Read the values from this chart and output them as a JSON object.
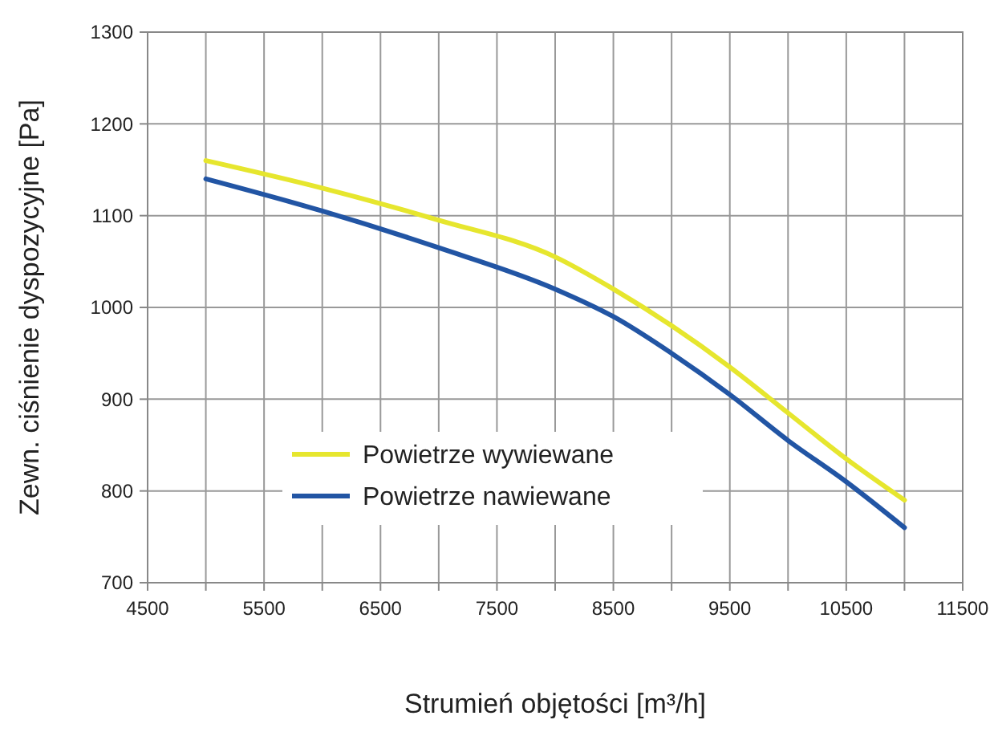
{
  "chart_data": {
    "type": "line",
    "xlabel": "Strumień objętości [m³/h]",
    "ylabel": "Zewn. ciśnienie dyspozycyjne [Pa]",
    "x": [
      5000,
      6000,
      7000,
      8000,
      8500,
      9000,
      9500,
      10000,
      10500,
      11000
    ],
    "series": [
      {
        "name": "Powietrze wywiewane",
        "color": "#e6e62e",
        "values": [
          1160,
          1130,
          1095,
          1055,
          1020,
          980,
          935,
          885,
          835,
          790
        ]
      },
      {
        "name": "Powietrze nawiewane",
        "color": "#2255a4",
        "values": [
          1140,
          1105,
          1065,
          1020,
          990,
          950,
          905,
          855,
          810,
          760
        ]
      }
    ],
    "xlim": [
      4500,
      11500
    ],
    "xticks": [
      4500,
      {
        "value": 5000,
        "label": null
      },
      5500,
      {
        "value": 6000,
        "label": null
      },
      6500,
      {
        "value": 7000,
        "label": null
      },
      7500,
      {
        "value": 8000,
        "label": null
      },
      8500,
      {
        "value": 9000,
        "label": null
      },
      9500,
      {
        "value": 10000,
        "label": null
      },
      10500,
      {
        "value": 11000,
        "label": null
      },
      11500
    ],
    "ylim": [
      700,
      1300
    ],
    "yticks": [
      700,
      800,
      900,
      1000,
      1100,
      1200,
      1300
    ],
    "grid": true,
    "legend": "bottom left",
    "marker": "none",
    "line_style": "solid"
  }
}
